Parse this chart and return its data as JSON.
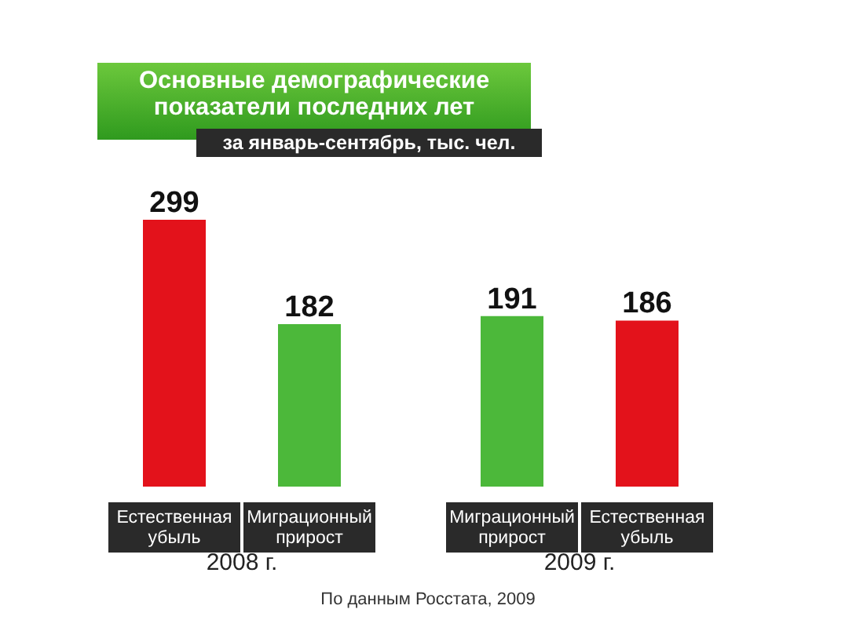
{
  "chart_data": {
    "type": "bar",
    "title": "Основные демографические показатели последних лет",
    "subtitle": "за январь-сентябрь, тыс. чел.",
    "categories": [
      "Естественная убыль",
      "Миграционный прирост",
      "Миграционный прирост",
      "Естественная убыль"
    ],
    "values": [
      299,
      182,
      191,
      186
    ],
    "colors": [
      "#e3121b",
      "#4cb83a",
      "#4cb83a",
      "#e3121b"
    ],
    "data_labels": true,
    "annotations": [
      "2008 г.",
      "2009 г.",
      "По данным Росстата, 2009"
    ]
  }
}
